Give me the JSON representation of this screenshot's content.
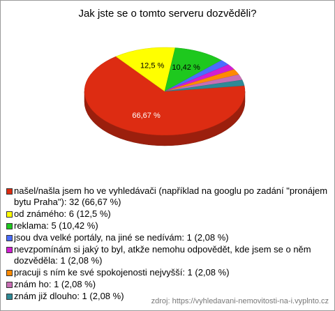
{
  "chart_data": {
    "type": "pie3d",
    "title": "Jak jste se o tomto serveru dozvěděli?",
    "categories": [
      "našel/našla jsem ho ve vyhledávači (například na googlu po zadání \"pronájem bytu Praha\"): 32 (66,67 %)",
      "od známého: 6 (12,5 %)",
      "reklama: 5 (10,42 %)",
      "jsou dva velké portály, na jiné se nedívám: 1 (2,08 %)",
      "nevzpomínám si jaký to byl, atkže nemohu odpovědět, kde jsem se o něm dozvěděla: 1 (2,08 %)",
      "pracuji s ním ke své spokojenosti nejvyšší: 1 (2,08 %)",
      "znám ho: 1 (2,08 %)",
      "znám již dlouho: 1 (2,08 %)"
    ],
    "values": [
      66.67,
      12.5,
      10.42,
      2.08,
      2.08,
      2.08,
      2.08,
      2.08
    ],
    "value_labels": [
      "66,67 %",
      "12,5 %",
      "10,42 %",
      null,
      null,
      null,
      null,
      null
    ],
    "colors": [
      "#dd2c12",
      "#ffff00",
      "#1ec81e",
      "#4a6cff",
      "#d21ed2",
      "#ff8a00",
      "#c86eb4",
      "#2e8a96"
    ],
    "source": "zdroj: https://vyhledavani-nemovitosti-na-i.vyplnto.cz"
  }
}
